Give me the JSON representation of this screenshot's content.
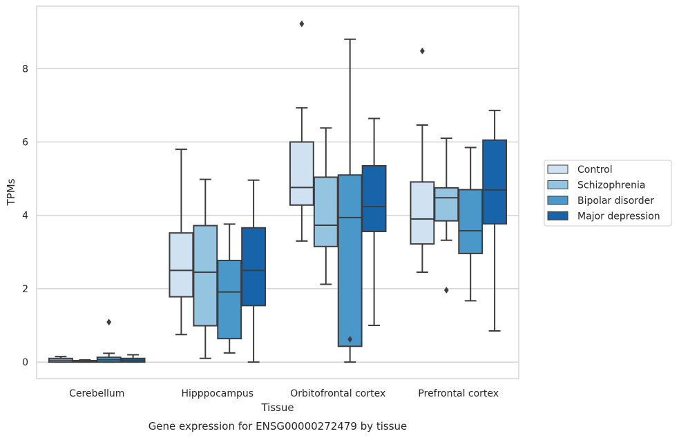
{
  "caption": "Gene expression for ENSG00000272479 by tissue",
  "chart_data": {
    "type": "box",
    "title": "",
    "xlabel": "Tissue",
    "ylabel": "TPMs",
    "categories": [
      "Cerebellum",
      "Hipppocampus",
      "Orbitofrontal cortex",
      "Prefrontal cortex"
    ],
    "ylim": [
      -0.45,
      9.7
    ],
    "yticks": [
      0,
      2,
      4,
      6,
      8
    ],
    "grid": "horizontal",
    "legend_position": "right, outside plot",
    "series": [
      {
        "name": "Control",
        "color": "#d0e1f2",
        "boxes": [
          {
            "whislo": 0.0,
            "q1": 0.0,
            "med": 0.05,
            "q3": 0.1,
            "whishi": 0.15,
            "fliers": []
          },
          {
            "whislo": 0.75,
            "q1": 1.78,
            "med": 2.5,
            "q3": 3.52,
            "whishi": 5.8,
            "fliers": []
          },
          {
            "whislo": 3.3,
            "q1": 4.28,
            "med": 4.76,
            "q3": 6.0,
            "whishi": 6.93,
            "fliers": [
              9.22
            ]
          },
          {
            "whislo": 2.45,
            "q1": 3.22,
            "med": 3.9,
            "q3": 4.91,
            "whishi": 6.46,
            "fliers": [
              8.48
            ]
          }
        ]
      },
      {
        "name": "Schizophrenia",
        "color": "#94c4df",
        "boxes": [
          {
            "whislo": 0.0,
            "q1": 0.0,
            "med": 0.02,
            "q3": 0.04,
            "whishi": 0.06,
            "fliers": []
          },
          {
            "whislo": 0.1,
            "q1": 0.99,
            "med": 2.45,
            "q3": 3.72,
            "whishi": 4.98,
            "fliers": []
          },
          {
            "whislo": 2.12,
            "q1": 3.15,
            "med": 3.73,
            "q3": 5.04,
            "whishi": 6.38,
            "fliers": []
          },
          {
            "whislo": 3.32,
            "q1": 3.85,
            "med": 4.48,
            "q3": 4.75,
            "whishi": 6.1,
            "fliers": [
              1.96
            ]
          }
        ]
      },
      {
        "name": "Bipolar disorder",
        "color": "#4a98c9",
        "boxes": [
          {
            "whislo": 0.0,
            "q1": 0.0,
            "med": 0.06,
            "q3": 0.13,
            "whishi": 0.24,
            "fliers": [
              1.09
            ]
          },
          {
            "whislo": 0.25,
            "q1": 0.64,
            "med": 1.91,
            "q3": 2.77,
            "whishi": 3.76,
            "fliers": []
          },
          {
            "whislo": 0.0,
            "q1": 0.43,
            "med": 3.94,
            "q3": 5.1,
            "whishi": 8.8,
            "fliers": [
              0.62
            ]
          },
          {
            "whislo": 1.67,
            "q1": 2.96,
            "med": 3.58,
            "q3": 4.7,
            "whishi": 5.85,
            "fliers": []
          }
        ]
      },
      {
        "name": "Major depression",
        "color": "#1764ab",
        "boxes": [
          {
            "whislo": 0.0,
            "q1": 0.0,
            "med": 0.05,
            "q3": 0.1,
            "whishi": 0.2,
            "fliers": []
          },
          {
            "whislo": 0.0,
            "q1": 1.54,
            "med": 2.5,
            "q3": 3.66,
            "whishi": 4.96,
            "fliers": []
          },
          {
            "whislo": 1.0,
            "q1": 3.56,
            "med": 4.24,
            "q3": 5.35,
            "whishi": 6.64,
            "fliers": []
          },
          {
            "whislo": 0.85,
            "q1": 3.77,
            "med": 4.69,
            "q3": 6.05,
            "whishi": 6.86,
            "fliers": []
          }
        ]
      }
    ]
  }
}
